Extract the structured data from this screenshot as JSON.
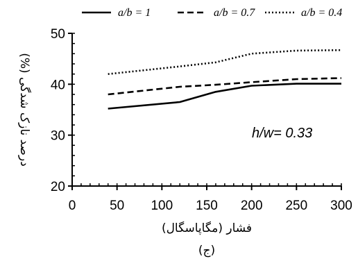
{
  "chart_data": {
    "type": "line",
    "title": "",
    "xlabel": "فشار (مگاپاسگال)",
    "ylabel": "درصد نازک شدگی (%)",
    "caption": "(ج)",
    "annotation": "h/w= 0.33",
    "xlim": [
      0,
      300
    ],
    "ylim": [
      20,
      50
    ],
    "x_ticks": [
      0,
      50,
      100,
      150,
      200,
      250,
      300
    ],
    "y_ticks": [
      20,
      30,
      40,
      50
    ],
    "grid": false,
    "legend_position": "top",
    "series": [
      {
        "name": "a/b = 1",
        "style": "solid",
        "color": "#000000",
        "x": [
          40,
          120,
          160,
          200,
          250,
          300
        ],
        "y": [
          35.2,
          36.5,
          38.5,
          39.7,
          40.1,
          40.1
        ]
      },
      {
        "name": "a/b = 0.7",
        "style": "dashed",
        "color": "#000000",
        "x": [
          40,
          120,
          160,
          200,
          250,
          300
        ],
        "y": [
          38.0,
          39.5,
          39.9,
          40.4,
          41.0,
          41.2
        ]
      },
      {
        "name": "a/b = 0.4",
        "style": "dotted",
        "color": "#000000",
        "x": [
          40,
          120,
          160,
          200,
          250,
          300
        ],
        "y": [
          42.0,
          43.5,
          44.3,
          46.0,
          46.6,
          46.7
        ]
      }
    ]
  }
}
